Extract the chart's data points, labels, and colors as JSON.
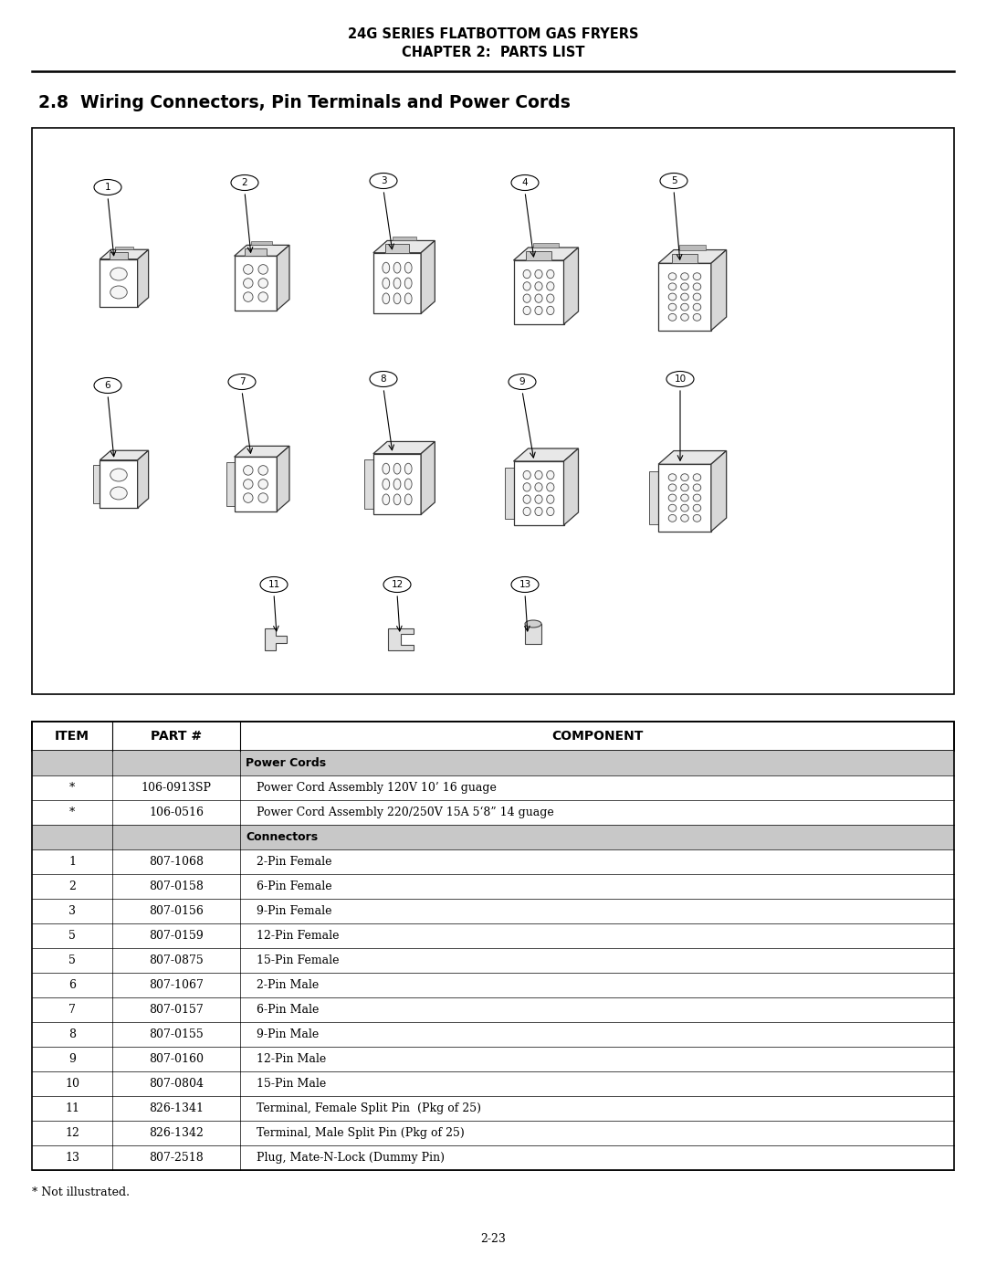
{
  "title_line1": "24G SERIES FLATBOTTOM GAS FRYERS",
  "title_line2": "CHAPTER 2:  PARTS LIST",
  "section_title": "2.8  Wiring Connectors, Pin Terminals and Power Cords",
  "page_number": "2-23",
  "footnote": "* Not illustrated.",
  "table_headers": [
    "ITEM",
    "PART #",
    "COMPONENT"
  ],
  "table_rows": [
    {
      "item": "",
      "part": "",
      "component": "Power Cords",
      "bold": true,
      "shaded": true
    },
    {
      "item": "*",
      "part": "106-0913SP",
      "component": "Power Cord Assembly 120V 10’ 16 guage",
      "bold": false,
      "shaded": false
    },
    {
      "item": "*",
      "part": "106-0516",
      "component": "Power Cord Assembly 220/250V 15A 5‘8” 14 guage",
      "bold": false,
      "shaded": false
    },
    {
      "item": "",
      "part": "",
      "component": "Connectors",
      "bold": true,
      "shaded": true
    },
    {
      "item": "1",
      "part": "807-1068",
      "component": "2-Pin Female",
      "bold": false,
      "shaded": false
    },
    {
      "item": "2",
      "part": "807-0158",
      "component": "6-Pin Female",
      "bold": false,
      "shaded": false
    },
    {
      "item": "3",
      "part": "807-0156",
      "component": "9-Pin Female",
      "bold": false,
      "shaded": false
    },
    {
      "item": "5",
      "part": "807-0159",
      "component": "12-Pin Female",
      "bold": false,
      "shaded": false
    },
    {
      "item": "5",
      "part": "807-0875",
      "component": "15-Pin Female",
      "bold": false,
      "shaded": false
    },
    {
      "item": "6",
      "part": "807-1067",
      "component": "2-Pin Male",
      "bold": false,
      "shaded": false
    },
    {
      "item": "7",
      "part": "807-0157",
      "component": "6-Pin Male",
      "bold": false,
      "shaded": false
    },
    {
      "item": "8",
      "part": "807-0155",
      "component": "9-Pin Male",
      "bold": false,
      "shaded": false
    },
    {
      "item": "9",
      "part": "807-0160",
      "component": "12-Pin Male",
      "bold": false,
      "shaded": false
    },
    {
      "item": "10",
      "part": "807-0804",
      "component": "15-Pin Male",
      "bold": false,
      "shaded": false
    },
    {
      "item": "11",
      "part": "826-1341",
      "component": "Terminal, Female Split Pin  (Pkg of 25)",
      "bold": false,
      "shaded": false
    },
    {
      "item": "12",
      "part": "826-1342",
      "component": "Terminal, Male Split Pin (Pkg of 25)",
      "bold": false,
      "shaded": false
    },
    {
      "item": "13",
      "part": "807-2518",
      "component": "Plug, Mate-N-Lock (Dummy Pin)",
      "bold": false,
      "shaded": false
    }
  ],
  "bg_color": "#ffffff",
  "shaded_bg": "#c8c8c8",
  "text_color": "#000000",
  "title_fontsize": 10.5,
  "section_fontsize": 13.5,
  "table_fontsize": 9.0,
  "fig_w": 10.8,
  "fig_h": 13.97,
  "dpi": 100
}
